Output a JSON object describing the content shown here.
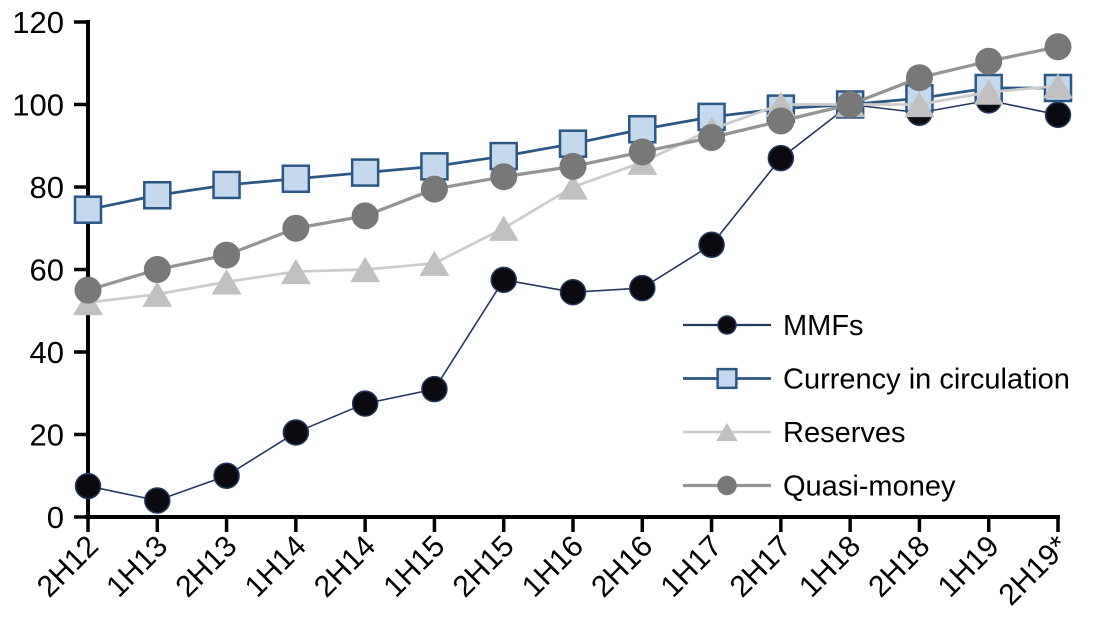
{
  "chart_data": {
    "type": "line",
    "title": "",
    "xlabel": "",
    "ylabel": "",
    "categories": [
      "2H12",
      "1H13",
      "2H13",
      "1H14",
      "2H14",
      "1H15",
      "2H15",
      "1H16",
      "2H16",
      "1H17",
      "2H17",
      "1H18",
      "2H18",
      "1H19",
      "2H19*"
    ],
    "series": [
      {
        "name": "MMFs",
        "slug": "mmfs",
        "marker": "circle",
        "values": [
          7.5,
          4,
          10,
          20.5,
          27.5,
          31,
          57.5,
          54.5,
          55.5,
          66,
          87,
          100,
          98,
          101,
          97.5
        ],
        "line_color": "#24385C",
        "line_width": 1.6,
        "marker_fill": "#0A0A10",
        "marker_stroke": "#24385C",
        "marker_stroke_width": 1.5,
        "marker_size": 25
      },
      {
        "name": "Currency in circulation",
        "slug": "currency-in-circulation",
        "marker": "square",
        "values": [
          74.5,
          78,
          80.5,
          82,
          83.5,
          85,
          87.5,
          90.5,
          94,
          97,
          99,
          100,
          101.5,
          104,
          104
        ],
        "line_color": "#2A5783",
        "line_width": 2.75,
        "marker_fill": "#C4D9ED",
        "marker_stroke": "#2A5783",
        "marker_stroke_width": 2.5,
        "marker_size": 26
      },
      {
        "name": "Reserves",
        "slug": "reserves",
        "marker": "triangle",
        "values": [
          52,
          54,
          57,
          59.5,
          60,
          61.5,
          70,
          80,
          86,
          94,
          100,
          100,
          100,
          103,
          104.5
        ],
        "line_color": "#CBCBCB",
        "line_width": 2.75,
        "marker_fill": "#C0C0C0",
        "marker_stroke": "none",
        "marker_stroke_width": 0,
        "marker_size": 30
      },
      {
        "name": "Quasi-money",
        "slug": "quasi-money",
        "marker": "circle",
        "values": [
          55,
          60,
          63.5,
          70,
          73,
          79.5,
          82.5,
          85,
          88.5,
          92,
          96,
          100,
          106.5,
          110.5,
          114
        ],
        "line_color": "#949494",
        "line_width": 3.25,
        "marker_fill": "#787878",
        "marker_stroke": "none",
        "marker_stroke_width": 0,
        "marker_size": 27
      }
    ],
    "y_ticks": [
      0,
      20,
      40,
      60,
      80,
      100,
      120
    ],
    "ylim": [
      0,
      120
    ],
    "grid": false,
    "axis_color": "#000000",
    "legend_position": "inside-right",
    "legend_entries": [
      "MMFs",
      "Currency in circulation",
      "Reserves",
      "Quasi-money"
    ]
  }
}
